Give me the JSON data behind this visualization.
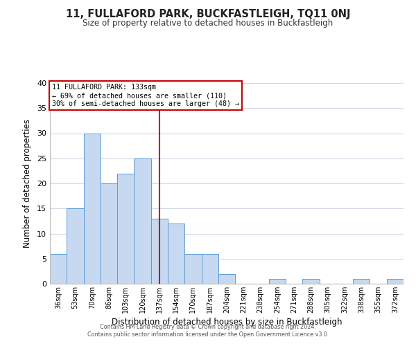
{
  "title": "11, FULLAFORD PARK, BUCKFASTLEIGH, TQ11 0NJ",
  "subtitle": "Size of property relative to detached houses in Buckfastleigh",
  "xlabel": "Distribution of detached houses by size in Buckfastleigh",
  "ylabel": "Number of detached properties",
  "bar_labels": [
    "36sqm",
    "53sqm",
    "70sqm",
    "86sqm",
    "103sqm",
    "120sqm",
    "137sqm",
    "154sqm",
    "170sqm",
    "187sqm",
    "204sqm",
    "221sqm",
    "238sqm",
    "254sqm",
    "271sqm",
    "288sqm",
    "305sqm",
    "322sqm",
    "338sqm",
    "355sqm",
    "372sqm"
  ],
  "bar_values": [
    6,
    15,
    30,
    20,
    22,
    25,
    13,
    12,
    6,
    6,
    2,
    0,
    0,
    1,
    0,
    1,
    0,
    0,
    1,
    0,
    1
  ],
  "bar_color": "#c6d9f0",
  "bar_edge_color": "#5b9bd5",
  "vline_x": 6,
  "vline_color": "#cc0000",
  "ylim": [
    0,
    40
  ],
  "yticks": [
    0,
    5,
    10,
    15,
    20,
    25,
    30,
    35,
    40
  ],
  "annotation_title": "11 FULLAFORD PARK: 133sqm",
  "annotation_line1": "← 69% of detached houses are smaller (110)",
  "annotation_line2": "30% of semi-detached houses are larger (48) →",
  "annotation_box_color": "#ffffff",
  "annotation_edge_color": "#cc0000",
  "footer1": "Contains HM Land Registry data © Crown copyright and database right 2024.",
  "footer2": "Contains public sector information licensed under the Open Government Licence v3.0.",
  "background_color": "#ffffff",
  "grid_color": "#d0d8e4"
}
